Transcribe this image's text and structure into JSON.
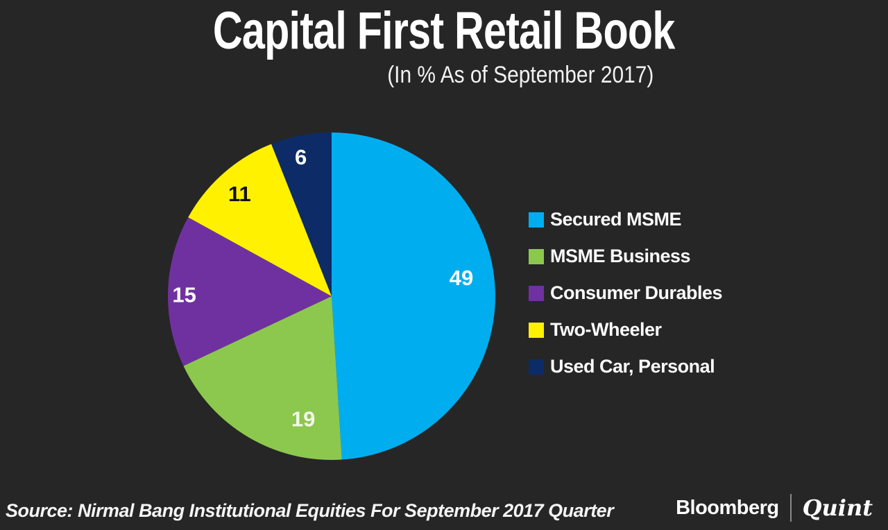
{
  "header": {
    "title": "Capital First Retail Book",
    "subtitle": "(In % As of September 2017)"
  },
  "chart_data": {
    "type": "pie",
    "title": "Capital First Retail Book",
    "subtitle": "(In % As of September 2017)",
    "unit": "%",
    "total": 100,
    "direction": "clockwise",
    "start_angle": "12 o'clock",
    "legend_position": "right",
    "slices": [
      {
        "label": "Secured MSME",
        "value": 49,
        "color": "#00AEEF",
        "label_color": "#FFFFFF",
        "label_angle_deg": 82,
        "label_radius_frac": 0.8
      },
      {
        "label": "MSME Business",
        "value": 19,
        "color": "#8CC84E",
        "label_color": "#F3F8EC",
        "label_angle_deg": 193,
        "label_radius_frac": 0.77
      },
      {
        "label": "Consumer Durables",
        "value": 15,
        "color": "#7031A0",
        "label_color": "#FFFFFF",
        "label_angle_deg": 270.5,
        "label_radius_frac": 0.9
      },
      {
        "label": "Two-Wheeler",
        "value": 11,
        "color": "#FFF100",
        "label_color": "#111111",
        "label_angle_deg": 318,
        "label_radius_frac": 0.84
      },
      {
        "label": "Used Car, Personal",
        "value": 6,
        "color": "#0D2B67",
        "label_color": "#FFFFFF",
        "label_angle_deg": 347.5,
        "label_radius_frac": 0.87
      }
    ]
  },
  "footer": {
    "source": "Source: Nirmal Bang Institutional Equities For September 2017 Quarter",
    "brand_left": "Bloomberg",
    "brand_right": "Quint"
  },
  "colors": {
    "background": "#262626",
    "text": "#FFFFFF"
  }
}
